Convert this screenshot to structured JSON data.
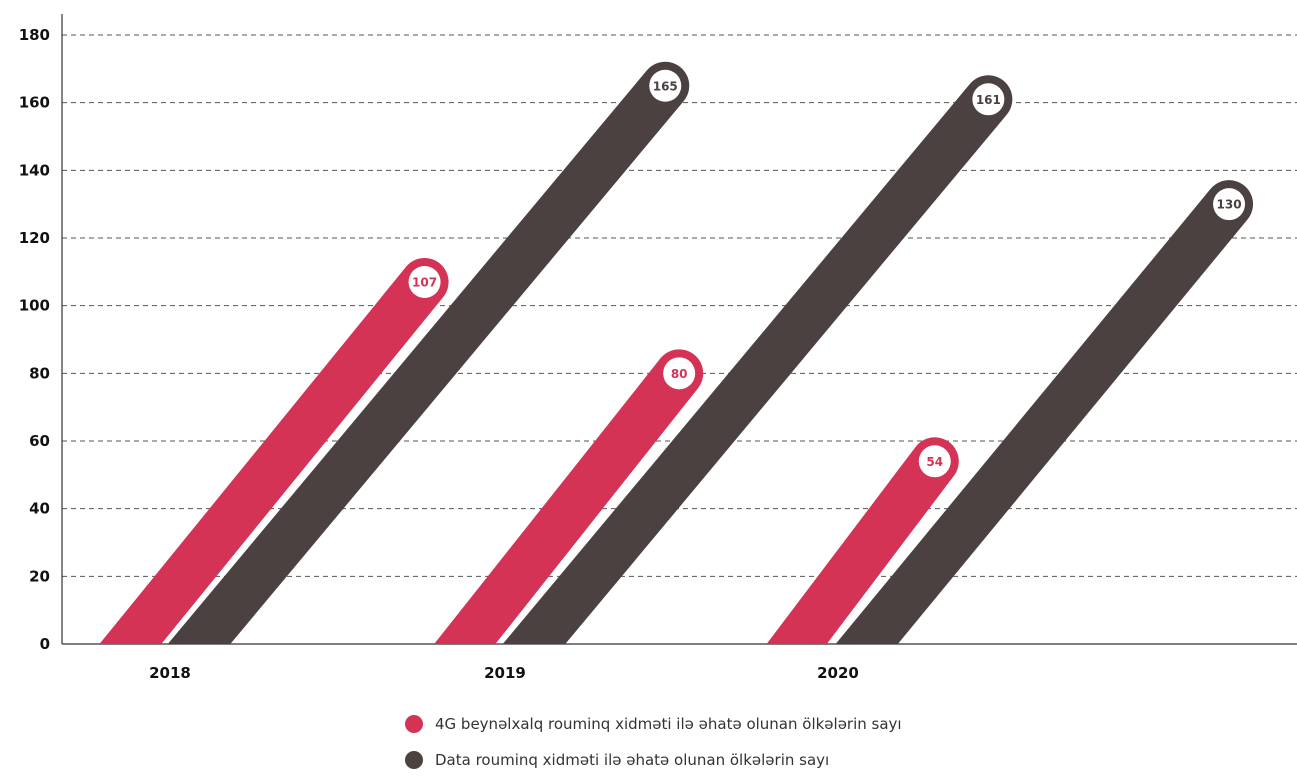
{
  "chart_data": {
    "type": "bar",
    "categories": [
      "2018",
      "2019",
      "2020"
    ],
    "series": [
      {
        "name": "4G beynəlxalq rouminq xidməti ilə əhatə olunan ölkələrin sayı",
        "values": [
          107,
          80,
          54
        ],
        "color": "#d43356"
      },
      {
        "name": "Data rouminq xidməti ilə əhatə olunan ölkələrin sayı",
        "values": [
          165,
          161,
          130
        ],
        "color": "#4b4141"
      }
    ],
    "yticks": [
      0,
      20,
      40,
      60,
      80,
      100,
      120,
      140,
      160,
      180
    ],
    "ylim": [
      0,
      180
    ],
    "grid": true,
    "legend_position": "bottom-center"
  }
}
